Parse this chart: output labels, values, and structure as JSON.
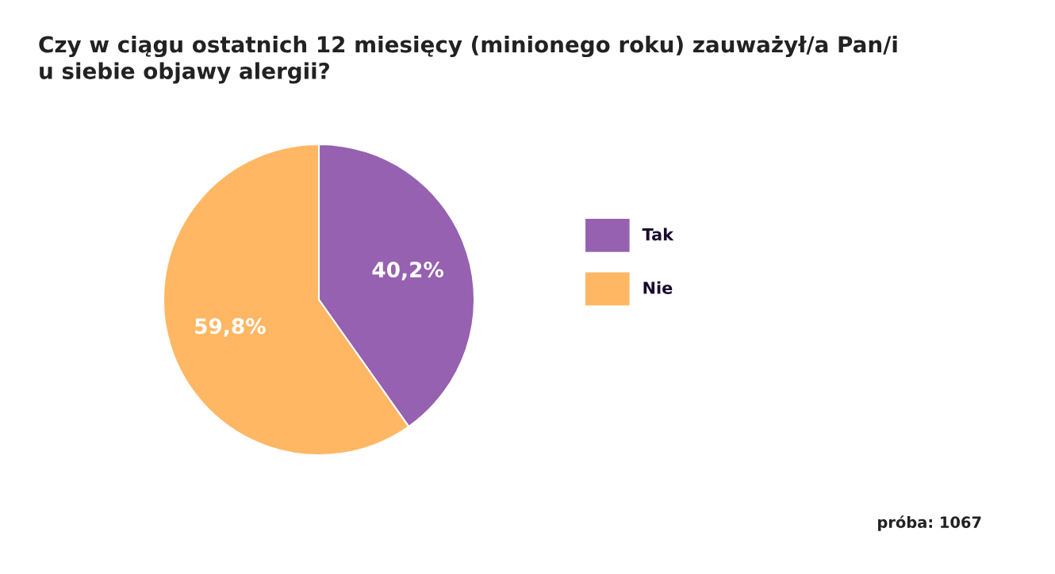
{
  "chart_data": {
    "type": "pie",
    "title": "Czy w ciągu ostatnich 12 miesięcy (minionego roku) zauważył/a Pan/i\nu siebie objawy alergii?",
    "categories": [
      "Tak",
      "Nie"
    ],
    "values": [
      40.2,
      59.8
    ],
    "colors": [
      "#9661b0",
      "#ffb764"
    ],
    "value_labels": [
      "40,2%",
      "59,8%"
    ],
    "legend": "right",
    "annotations": [
      "próba: 1067"
    ]
  }
}
